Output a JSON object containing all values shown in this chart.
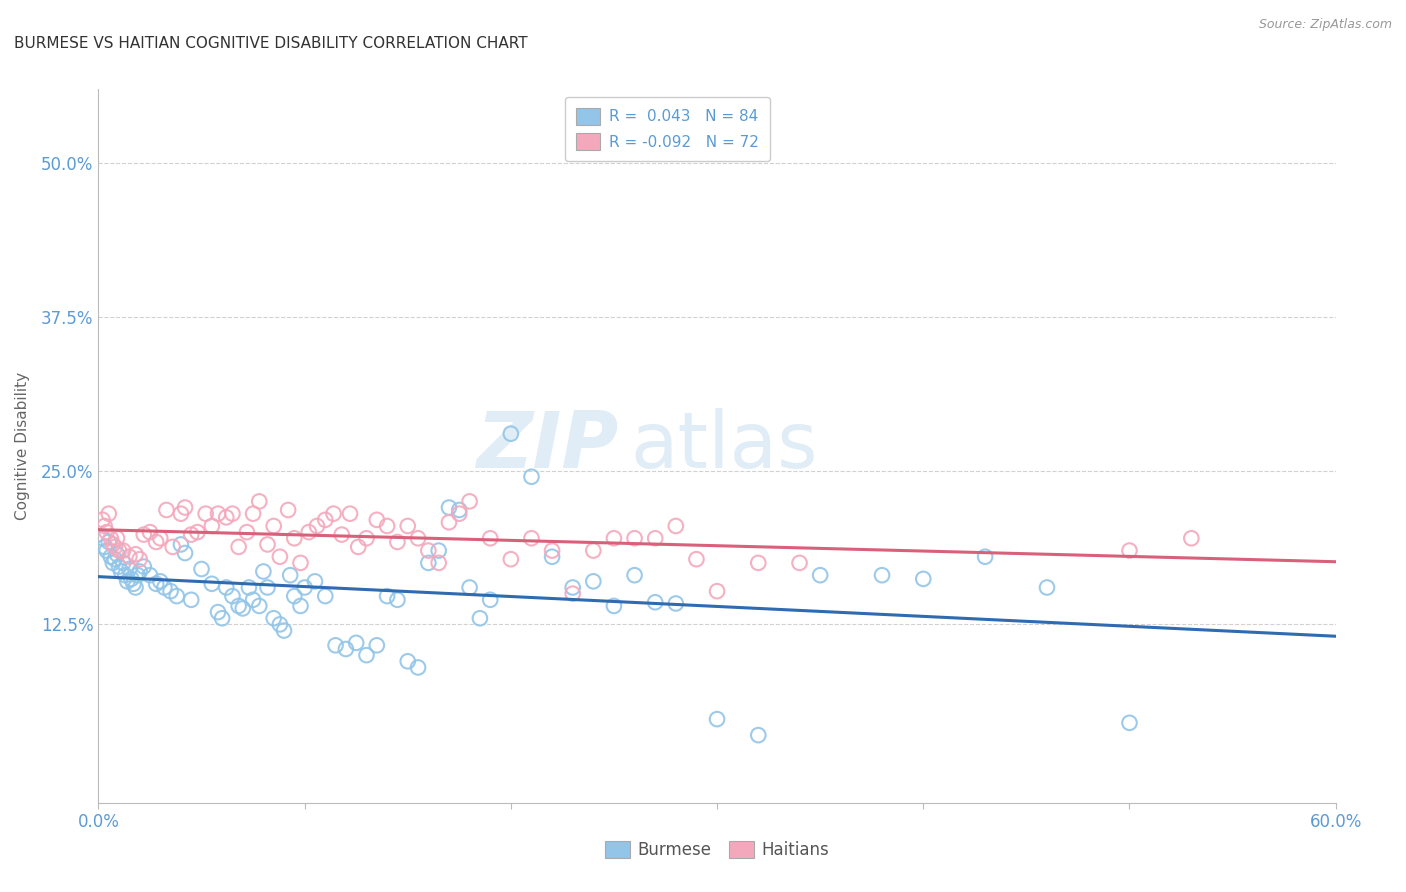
{
  "title": "BURMESE VS HAITIAN COGNITIVE DISABILITY CORRELATION CHART",
  "source": "Source: ZipAtlas.com",
  "ylabel": "Cognitive Disability",
  "ytick_labels": [
    "12.5%",
    "25.0%",
    "37.5%",
    "50.0%"
  ],
  "ytick_values": [
    0.125,
    0.25,
    0.375,
    0.5
  ],
  "xlim": [
    0.0,
    0.6
  ],
  "ylim": [
    -0.02,
    0.56
  ],
  "burmese_R": "0.043",
  "burmese_N": "84",
  "haitian_R": "-0.092",
  "haitian_N": "72",
  "burmese_color": "#92C5E8",
  "haitian_color": "#F4A8BC",
  "burmese_line_color": "#2E6BB0",
  "haitian_line_color": "#D9607A",
  "watermark_zip": "ZIP",
  "watermark_atlas": "atlas",
  "background_color": "#FFFFFF",
  "burmese_x": [
    0.002,
    0.003,
    0.004,
    0.005,
    0.006,
    0.007,
    0.008,
    0.009,
    0.01,
    0.011,
    0.012,
    0.013,
    0.014,
    0.015,
    0.016,
    0.017,
    0.018,
    0.019,
    0.02,
    0.022,
    0.025,
    0.028,
    0.03,
    0.032,
    0.035,
    0.038,
    0.04,
    0.042,
    0.045,
    0.05,
    0.055,
    0.058,
    0.06,
    0.062,
    0.065,
    0.068,
    0.07,
    0.073,
    0.075,
    0.078,
    0.08,
    0.082,
    0.085,
    0.088,
    0.09,
    0.093,
    0.095,
    0.098,
    0.1,
    0.105,
    0.11,
    0.115,
    0.12,
    0.125,
    0.13,
    0.135,
    0.14,
    0.145,
    0.15,
    0.155,
    0.16,
    0.165,
    0.17,
    0.175,
    0.18,
    0.185,
    0.19,
    0.2,
    0.21,
    0.22,
    0.23,
    0.24,
    0.25,
    0.26,
    0.27,
    0.28,
    0.3,
    0.32,
    0.35,
    0.38,
    0.4,
    0.43,
    0.46,
    0.5
  ],
  "burmese_y": [
    0.195,
    0.188,
    0.185,
    0.192,
    0.18,
    0.175,
    0.178,
    0.182,
    0.172,
    0.168,
    0.175,
    0.165,
    0.16,
    0.17,
    0.162,
    0.158,
    0.155,
    0.165,
    0.168,
    0.172,
    0.165,
    0.158,
    0.16,
    0.155,
    0.152,
    0.148,
    0.19,
    0.183,
    0.145,
    0.17,
    0.158,
    0.135,
    0.13,
    0.155,
    0.148,
    0.14,
    0.138,
    0.155,
    0.145,
    0.14,
    0.168,
    0.155,
    0.13,
    0.125,
    0.12,
    0.165,
    0.148,
    0.14,
    0.155,
    0.16,
    0.148,
    0.108,
    0.105,
    0.11,
    0.1,
    0.108,
    0.148,
    0.145,
    0.095,
    0.09,
    0.175,
    0.185,
    0.22,
    0.218,
    0.155,
    0.13,
    0.145,
    0.28,
    0.245,
    0.18,
    0.155,
    0.16,
    0.14,
    0.165,
    0.143,
    0.142,
    0.048,
    0.035,
    0.165,
    0.165,
    0.162,
    0.18,
    0.155,
    0.045
  ],
  "haitian_x": [
    0.002,
    0.003,
    0.004,
    0.005,
    0.006,
    0.007,
    0.008,
    0.009,
    0.01,
    0.012,
    0.015,
    0.018,
    0.02,
    0.022,
    0.025,
    0.028,
    0.03,
    0.033,
    0.036,
    0.04,
    0.042,
    0.045,
    0.048,
    0.052,
    0.055,
    0.058,
    0.062,
    0.065,
    0.068,
    0.072,
    0.075,
    0.078,
    0.082,
    0.085,
    0.088,
    0.092,
    0.095,
    0.098,
    0.102,
    0.106,
    0.11,
    0.114,
    0.118,
    0.122,
    0.126,
    0.13,
    0.135,
    0.14,
    0.145,
    0.15,
    0.155,
    0.16,
    0.165,
    0.17,
    0.175,
    0.18,
    0.19,
    0.2,
    0.21,
    0.22,
    0.23,
    0.24,
    0.25,
    0.26,
    0.27,
    0.28,
    0.29,
    0.3,
    0.32,
    0.34,
    0.5,
    0.53
  ],
  "haitian_y": [
    0.21,
    0.205,
    0.2,
    0.215,
    0.195,
    0.19,
    0.188,
    0.195,
    0.185,
    0.185,
    0.18,
    0.182,
    0.178,
    0.198,
    0.2,
    0.192,
    0.195,
    0.218,
    0.188,
    0.215,
    0.22,
    0.198,
    0.2,
    0.215,
    0.205,
    0.215,
    0.212,
    0.215,
    0.188,
    0.2,
    0.215,
    0.225,
    0.19,
    0.205,
    0.18,
    0.218,
    0.195,
    0.175,
    0.2,
    0.205,
    0.21,
    0.215,
    0.198,
    0.215,
    0.188,
    0.195,
    0.21,
    0.205,
    0.192,
    0.205,
    0.195,
    0.185,
    0.175,
    0.208,
    0.215,
    0.225,
    0.195,
    0.178,
    0.195,
    0.185,
    0.15,
    0.185,
    0.195,
    0.195,
    0.195,
    0.205,
    0.178,
    0.152,
    0.175,
    0.175,
    0.185,
    0.195
  ]
}
